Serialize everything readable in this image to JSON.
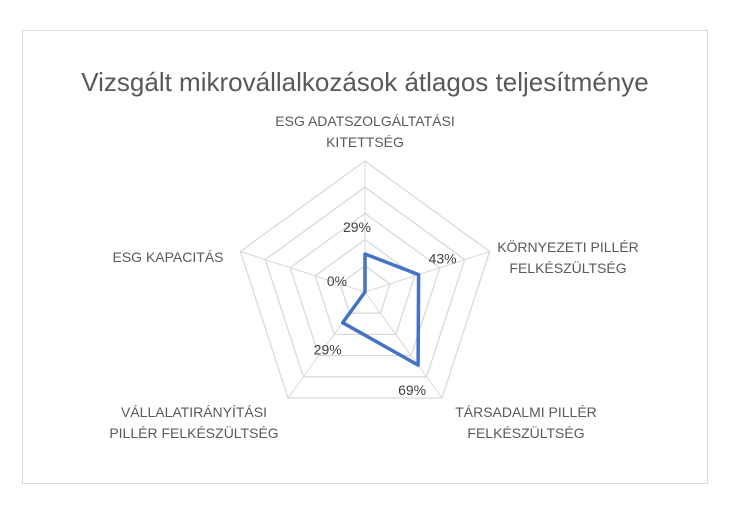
{
  "chart_data": {
    "type": "radar",
    "title": "Vizsgált mikrovállalkozások átlagos teljesítménye",
    "categories": [
      "ESG ADATSZOLGÁLTATÁSI KITETTSÉG",
      "KÖRNYEZETI PILLÉR FELKÉSZÜLTSÉG",
      "TÁRSADALMI PILLÉR FELKÉSZÜLTSÉG",
      "VÁLLALATIRÁNYÍTÁSI PILLÉR FELKÉSZÜLTSÉG",
      "ESG KAPACITÁS"
    ],
    "category_lines": [
      [
        "ESG ADATSZOLGÁLTATÁSI",
        "KITETTSÉG"
      ],
      [
        "KÖRNYEZETI PILLÉR",
        "FELKÉSZÜLTSÉG"
      ],
      [
        "TÁRSADALMI PILLÉR",
        "FELKÉSZÜLTSÉG"
      ],
      [
        "VÁLLALATIRÁNYÍTÁSI",
        "PILLÉR FELKÉSZÜLTSÉG"
      ],
      [
        "ESG KAPACITÁS"
      ]
    ],
    "series": [
      {
        "values": [
          29,
          43,
          69,
          29,
          0
        ],
        "data_labels": [
          "29%",
          "43%",
          "69%",
          "29%",
          "0%"
        ],
        "color": "#4472c4"
      }
    ],
    "rmax": 100,
    "grid": true,
    "legend": "none"
  }
}
